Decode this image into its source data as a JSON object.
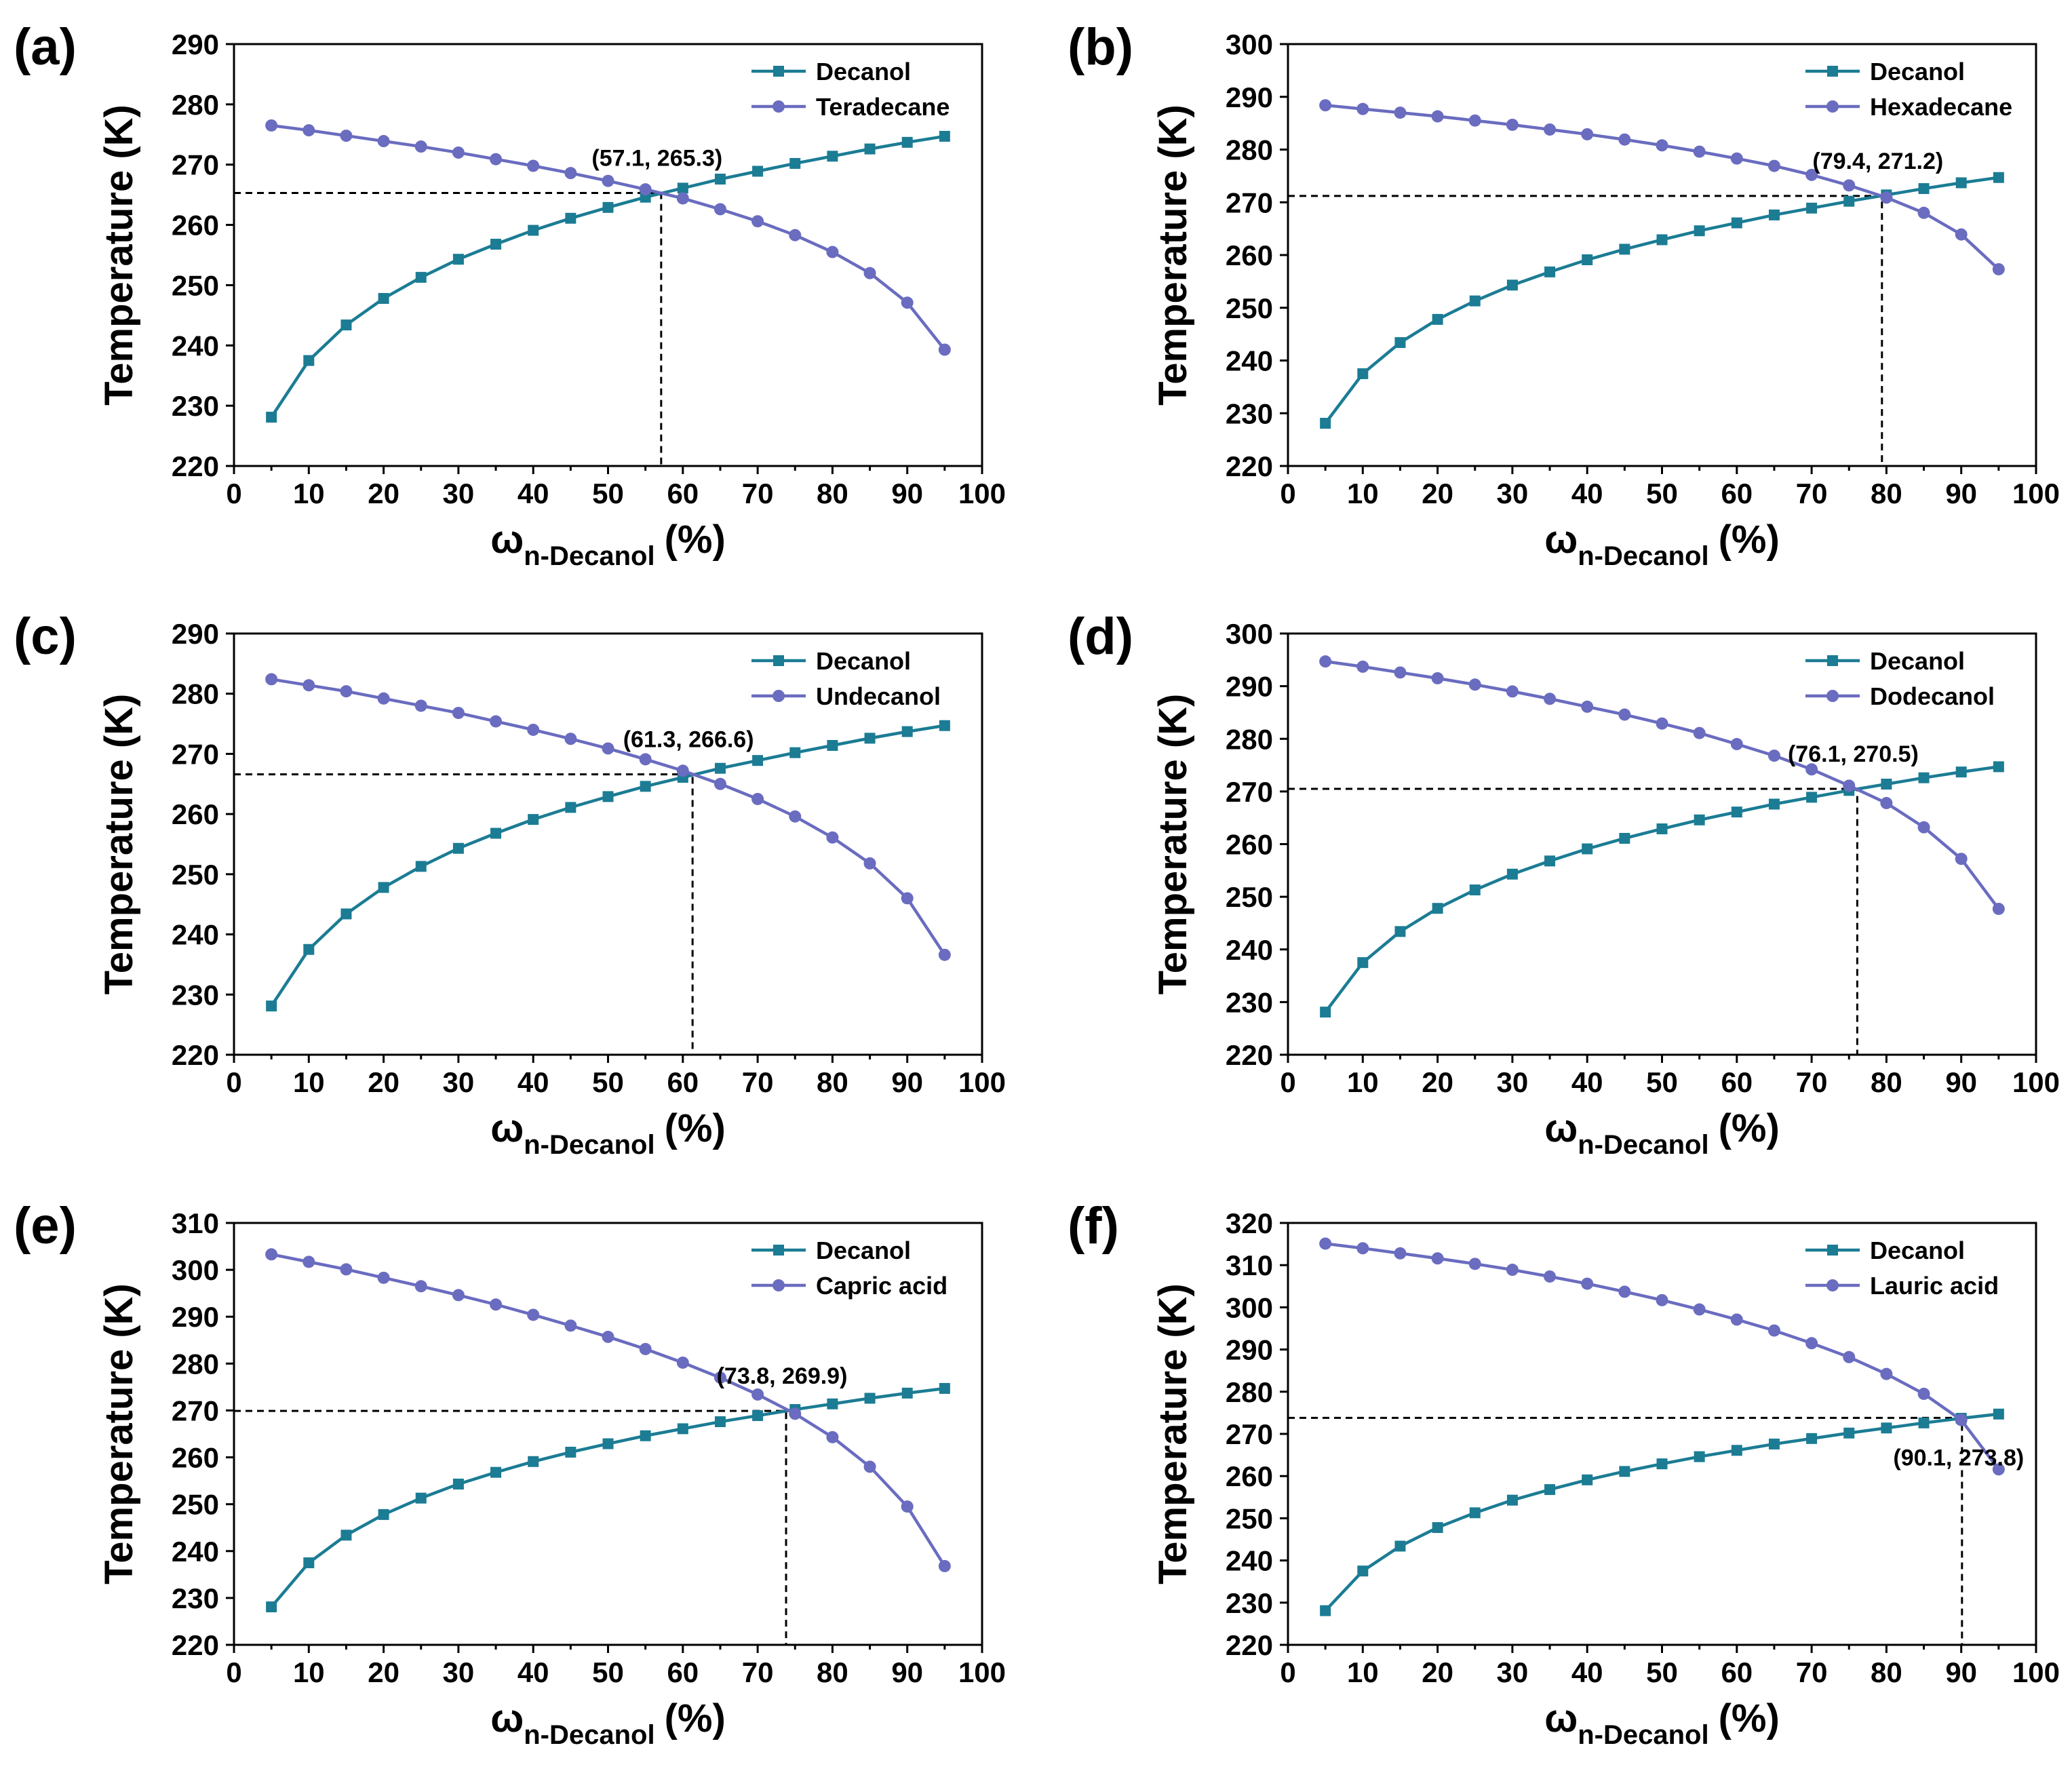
{
  "chart_data": [
    {
      "type": "line",
      "panel": "(a)",
      "xlabel": "ω",
      "xlabel_sub": "n-Decanol",
      "xlabel_unit": "(%)",
      "ylabel": "Temperature (K)",
      "xlim": [
        0,
        100
      ],
      "ylim": [
        220,
        290
      ],
      "xticks": [
        0,
        10,
        20,
        30,
        40,
        50,
        60,
        70,
        80,
        90,
        100
      ],
      "yticks": [
        220,
        230,
        240,
        250,
        260,
        270,
        280,
        290
      ],
      "x": [
        5,
        10,
        15,
        20,
        25,
        30,
        35,
        40,
        45,
        50,
        55,
        60,
        65,
        70,
        75,
        80,
        85,
        90,
        95
      ],
      "series": [
        {
          "name": "Decanol",
          "marker": "square",
          "color": "#1b7c94",
          "values": [
            228.1,
            237.5,
            243.4,
            247.8,
            251.3,
            254.3,
            256.8,
            259.1,
            261.1,
            262.9,
            264.6,
            266.1,
            267.6,
            268.9,
            270.2,
            271.4,
            272.6,
            273.7,
            274.7
          ]
        },
        {
          "name": "Teradecane",
          "marker": "circle",
          "color": "#6a6cc0",
          "values": [
            276.5,
            275.7,
            274.8,
            273.9,
            273.0,
            272.0,
            270.9,
            269.8,
            268.6,
            267.3,
            265.9,
            264.4,
            262.6,
            260.6,
            258.3,
            255.5,
            252.0,
            247.1,
            239.3
          ]
        }
      ],
      "intersection": {
        "x": 57.1,
        "y": 265.3,
        "label": "(57.1, 265.3)"
      },
      "legend": "top-right"
    },
    {
      "type": "line",
      "panel": "(b)",
      "xlabel": "ω",
      "xlabel_sub": "n-Decanol",
      "xlabel_unit": "(%)",
      "ylabel": "Temperature (K)",
      "xlim": [
        0,
        100
      ],
      "ylim": [
        220,
        300
      ],
      "xticks": [
        0,
        10,
        20,
        30,
        40,
        50,
        60,
        70,
        80,
        90,
        100
      ],
      "yticks": [
        220,
        230,
        240,
        250,
        260,
        270,
        280,
        290,
        300
      ],
      "x": [
        5,
        10,
        15,
        20,
        25,
        30,
        35,
        40,
        45,
        50,
        55,
        60,
        65,
        70,
        75,
        80,
        85,
        90,
        95
      ],
      "series": [
        {
          "name": "Decanol",
          "marker": "square",
          "color": "#1b7c94",
          "values": [
            228.1,
            237.5,
            243.4,
            247.8,
            251.3,
            254.3,
            256.8,
            259.1,
            261.1,
            262.9,
            264.6,
            266.1,
            267.6,
            268.9,
            270.2,
            271.4,
            272.6,
            273.7,
            274.7
          ]
        },
        {
          "name": "Hexadecane",
          "marker": "circle",
          "color": "#6a6cc0",
          "values": [
            288.4,
            287.7,
            287.0,
            286.3,
            285.5,
            284.7,
            283.8,
            282.9,
            281.9,
            280.8,
            279.6,
            278.3,
            276.9,
            275.2,
            273.2,
            270.9,
            268.0,
            263.9,
            257.3
          ]
        }
      ],
      "intersection": {
        "x": 79.4,
        "y": 271.2,
        "label": "(79.4, 271.2)"
      },
      "legend": "top-right"
    },
    {
      "type": "line",
      "panel": "(c)",
      "xlabel": "ω",
      "xlabel_sub": "n-Decanol",
      "xlabel_unit": "(%)",
      "ylabel": "Temperature (K)",
      "xlim": [
        0,
        100
      ],
      "ylim": [
        220,
        290
      ],
      "xticks": [
        0,
        10,
        20,
        30,
        40,
        50,
        60,
        70,
        80,
        90,
        100
      ],
      "yticks": [
        220,
        230,
        240,
        250,
        260,
        270,
        280,
        290
      ],
      "x": [
        5,
        10,
        15,
        20,
        25,
        30,
        35,
        40,
        45,
        50,
        55,
        60,
        65,
        70,
        75,
        80,
        85,
        90,
        95
      ],
      "series": [
        {
          "name": "Decanol",
          "marker": "square",
          "color": "#1b7c94",
          "values": [
            228.1,
            237.5,
            243.4,
            247.8,
            251.3,
            254.3,
            256.8,
            259.1,
            261.1,
            262.9,
            264.6,
            266.1,
            267.6,
            268.9,
            270.2,
            271.4,
            272.6,
            273.7,
            274.7
          ]
        },
        {
          "name": "Undecanol",
          "marker": "circle",
          "color": "#6a6cc0",
          "values": [
            282.4,
            281.4,
            280.4,
            279.2,
            278.0,
            276.8,
            275.4,
            274.0,
            272.5,
            270.9,
            269.1,
            267.2,
            265.0,
            262.5,
            259.6,
            256.1,
            251.8,
            246.0,
            236.6
          ]
        }
      ],
      "intersection": {
        "x": 61.3,
        "y": 266.6,
        "label": "(61.3, 266.6)"
      },
      "legend": "top-right"
    },
    {
      "type": "line",
      "panel": "(d)",
      "xlabel": "ω",
      "xlabel_sub": "n-Decanol",
      "xlabel_unit": "(%)",
      "ylabel": "Temperature (K)",
      "xlim": [
        0,
        100
      ],
      "ylim": [
        220,
        300
      ],
      "xticks": [
        0,
        10,
        20,
        30,
        40,
        50,
        60,
        70,
        80,
        90,
        100
      ],
      "yticks": [
        220,
        230,
        240,
        250,
        260,
        270,
        280,
        290,
        300
      ],
      "x": [
        5,
        10,
        15,
        20,
        25,
        30,
        35,
        40,
        45,
        50,
        55,
        60,
        65,
        70,
        75,
        80,
        85,
        90,
        95
      ],
      "series": [
        {
          "name": "Decanol",
          "marker": "square",
          "color": "#1b7c94",
          "values": [
            228.1,
            237.5,
            243.4,
            247.8,
            251.3,
            254.3,
            256.8,
            259.1,
            261.1,
            262.9,
            264.6,
            266.1,
            267.6,
            268.9,
            270.2,
            271.4,
            272.6,
            273.7,
            274.7
          ]
        },
        {
          "name": "Dodecanol",
          "marker": "circle",
          "color": "#6a6cc0",
          "values": [
            294.7,
            293.7,
            292.6,
            291.5,
            290.3,
            289.0,
            287.6,
            286.1,
            284.6,
            282.9,
            281.1,
            279.0,
            276.8,
            274.2,
            271.1,
            267.8,
            263.2,
            257.2,
            247.7
          ]
        }
      ],
      "intersection": {
        "x": 76.1,
        "y": 270.5,
        "label": "(76.1, 270.5)"
      },
      "legend": "top-right"
    },
    {
      "type": "line",
      "panel": "(e)",
      "xlabel": "ω",
      "xlabel_sub": "n-Decanol",
      "xlabel_unit": "(%)",
      "ylabel": "Temperature (K)",
      "xlim": [
        0,
        100
      ],
      "ylim": [
        220,
        310
      ],
      "xticks": [
        0,
        10,
        20,
        30,
        40,
        50,
        60,
        70,
        80,
        90,
        100
      ],
      "yticks": [
        220,
        230,
        240,
        250,
        260,
        270,
        280,
        290,
        300,
        310
      ],
      "x": [
        5,
        10,
        15,
        20,
        25,
        30,
        35,
        40,
        45,
        50,
        55,
        60,
        65,
        70,
        75,
        80,
        85,
        90,
        95
      ],
      "series": [
        {
          "name": "Decanol",
          "marker": "square",
          "color": "#1b7c94",
          "values": [
            228.1,
            237.5,
            243.4,
            247.8,
            251.3,
            254.3,
            256.8,
            259.1,
            261.1,
            262.9,
            264.6,
            266.1,
            267.6,
            268.9,
            270.2,
            271.4,
            272.6,
            273.7,
            274.7
          ]
        },
        {
          "name": "Capric acid",
          "marker": "circle",
          "color": "#6a6cc0",
          "values": [
            303.3,
            301.7,
            300.1,
            298.3,
            296.5,
            294.6,
            292.6,
            290.4,
            288.1,
            285.7,
            283.1,
            280.2,
            277.0,
            273.4,
            269.3,
            264.3,
            258.0,
            249.5,
            236.8
          ]
        }
      ],
      "intersection": {
        "x": 73.8,
        "y": 269.9,
        "label": "(73.8, 269.9)"
      },
      "legend": "top-right"
    },
    {
      "type": "line",
      "panel": "(f)",
      "xlabel": "ω",
      "xlabel_sub": "n-Decanol",
      "xlabel_unit": "(%)",
      "ylabel": "Temperature (K)",
      "xlim": [
        0,
        100
      ],
      "ylim": [
        220,
        320
      ],
      "xticks": [
        0,
        10,
        20,
        30,
        40,
        50,
        60,
        70,
        80,
        90,
        100
      ],
      "yticks": [
        220,
        230,
        240,
        250,
        260,
        270,
        280,
        290,
        300,
        310,
        320
      ],
      "x": [
        5,
        10,
        15,
        20,
        25,
        30,
        35,
        40,
        45,
        50,
        55,
        60,
        65,
        70,
        75,
        80,
        85,
        90,
        95
      ],
      "series": [
        {
          "name": "Decanol",
          "marker": "square",
          "color": "#1b7c94",
          "values": [
            228.1,
            237.5,
            243.4,
            247.8,
            251.3,
            254.3,
            256.8,
            259.1,
            261.1,
            262.9,
            264.6,
            266.1,
            267.6,
            268.9,
            270.2,
            271.4,
            272.6,
            273.7,
            274.7
          ]
        },
        {
          "name": "Lauric acid",
          "marker": "circle",
          "color": "#6a6cc0",
          "values": [
            315.1,
            314.0,
            312.8,
            311.6,
            310.3,
            308.9,
            307.3,
            305.6,
            303.7,
            301.7,
            299.5,
            297.1,
            294.5,
            291.5,
            288.2,
            284.2,
            279.5,
            273.3,
            261.6
          ]
        }
      ],
      "intersection": {
        "x": 90.1,
        "y": 273.8,
        "label": "(90.1, 273.8)"
      },
      "legend": "top-right"
    }
  ]
}
